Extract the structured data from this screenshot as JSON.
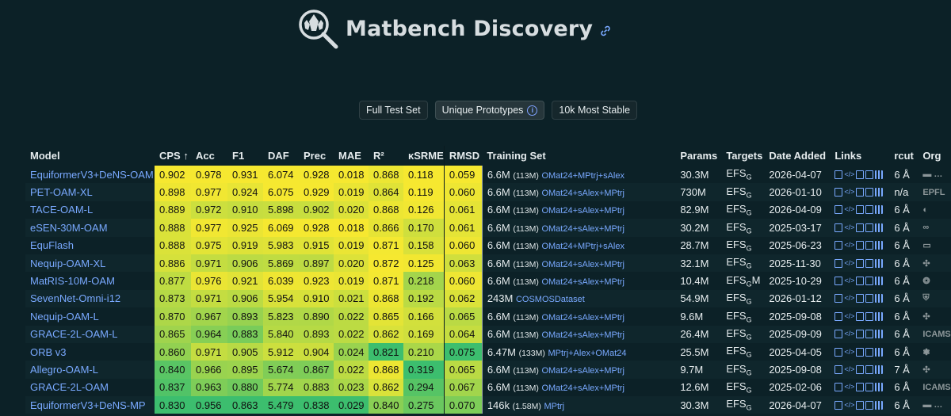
{
  "header": {
    "title": "Matbench Discovery"
  },
  "buttons": {
    "full": "Full Test Set",
    "unique": "Unique Prototypes",
    "stable": "10k Most Stable"
  },
  "columns": [
    "Model",
    "CPS ↑",
    "Acc",
    "F1",
    "DAF",
    "Prec",
    "MAE",
    "R²",
    "κSRME",
    "RMSD",
    "Training Set",
    "Params",
    "Targets",
    "Date Added",
    "Links",
    "rcut",
    "Org"
  ],
  "rows": [
    {
      "model": "EquiformerV3+DeNS-OAM",
      "cps": "0.902",
      "acc": "0.978",
      "f1": "0.931",
      "daf": "6.074",
      "prec": "0.928",
      "mae": "0.018",
      "r2": "0.868",
      "ksrme": "0.118",
      "rmsd": "0.059",
      "train_n": "6.6M",
      "train_s": "(113M)",
      "train_ds": "OMat24+MPtrj+sAlex",
      "params": "30.3M",
      "targets": "EFS",
      "targets_sub": "G",
      "targets_suf": "",
      "date": "2026-04-07",
      "rcut": "6 Å",
      "org": "▬ …"
    },
    {
      "model": "PET-OAM-XL",
      "cps": "0.898",
      "acc": "0.977",
      "f1": "0.924",
      "daf": "6.075",
      "prec": "0.929",
      "mae": "0.019",
      "r2": "0.864",
      "ksrme": "0.119",
      "rmsd": "0.060",
      "train_n": "6.6M",
      "train_s": "(113M)",
      "train_ds": "OMat24+sAlex+MPtrj",
      "params": "730M",
      "targets": "EFS",
      "targets_sub": "G",
      "targets_suf": "",
      "date": "2026-01-10",
      "rcut": "n/a",
      "org": "EPFL"
    },
    {
      "model": "TACE-OAM-L",
      "cps": "0.889",
      "acc": "0.972",
      "f1": "0.910",
      "daf": "5.898",
      "prec": "0.902",
      "mae": "0.020",
      "r2": "0.868",
      "ksrme": "0.126",
      "rmsd": "0.061",
      "train_n": "6.6M",
      "train_s": "(113M)",
      "train_ds": "OMat24+sAlex+MPtrj",
      "params": "82.9M",
      "targets": "EFS",
      "targets_sub": "G",
      "targets_suf": "",
      "date": "2026-04-09",
      "rcut": "6 Å",
      "org": "◐"
    },
    {
      "model": "eSEN-30M-OAM",
      "cps": "0.888",
      "acc": "0.977",
      "f1": "0.925",
      "daf": "6.069",
      "prec": "0.928",
      "mae": "0.018",
      "r2": "0.866",
      "ksrme": "0.170",
      "rmsd": "0.061",
      "train_n": "6.6M",
      "train_s": "(113M)",
      "train_ds": "OMat24+sAlex+MPtrj",
      "params": "30.2M",
      "targets": "EFS",
      "targets_sub": "G",
      "targets_suf": "",
      "date": "2025-03-17",
      "rcut": "6 Å",
      "org": "∞"
    },
    {
      "model": "EquFlash",
      "cps": "0.888",
      "acc": "0.975",
      "f1": "0.919",
      "daf": "5.983",
      "prec": "0.915",
      "mae": "0.019",
      "r2": "0.871",
      "ksrme": "0.158",
      "rmsd": "0.060",
      "train_n": "6.6M",
      "train_s": "(113M)",
      "train_ds": "OMat24+MPtrj+sAlex",
      "params": "28.7M",
      "targets": "EFS",
      "targets_sub": "G",
      "targets_suf": "",
      "date": "2025-06-23",
      "rcut": "6 Å",
      "org": "▭"
    },
    {
      "model": "Nequip-OAM-XL",
      "cps": "0.886",
      "acc": "0.971",
      "f1": "0.906",
      "daf": "5.869",
      "prec": "0.897",
      "mae": "0.020",
      "r2": "0.872",
      "ksrme": "0.125",
      "rmsd": "0.063",
      "train_n": "6.6M",
      "train_s": "(113M)",
      "train_ds": "OMat24+sAlex+MPtrj",
      "params": "32.1M",
      "targets": "EFS",
      "targets_sub": "G",
      "targets_suf": "",
      "date": "2025-11-30",
      "rcut": "6 Å",
      "org": "✣"
    },
    {
      "model": "MatRIS-10M-OAM",
      "cps": "0.877",
      "acc": "0.976",
      "f1": "0.921",
      "daf": "6.039",
      "prec": "0.923",
      "mae": "0.019",
      "r2": "0.871",
      "ksrme": "0.218",
      "rmsd": "0.060",
      "train_n": "6.6M",
      "train_s": "(113M)",
      "train_ds": "OMat24+sAlex+MPtrj",
      "params": "10.4M",
      "targets": "EFS",
      "targets_sub": "G",
      "targets_suf": "M",
      "date": "2025-10-29",
      "rcut": "6 Å",
      "org": "❂"
    },
    {
      "model": "SevenNet-Omni-i12",
      "cps": "0.873",
      "acc": "0.971",
      "f1": "0.906",
      "daf": "5.954",
      "prec": "0.910",
      "mae": "0.021",
      "r2": "0.868",
      "ksrme": "0.192",
      "rmsd": "0.062",
      "train_n": "243M",
      "train_s": "",
      "train_ds": "COSMOSDataset",
      "params": "54.9M",
      "targets": "EFS",
      "targets_sub": "G",
      "targets_suf": "",
      "date": "2026-01-12",
      "rcut": "6 Å",
      "org": "⛨"
    },
    {
      "model": "Nequip-OAM-L",
      "cps": "0.870",
      "acc": "0.967",
      "f1": "0.893",
      "daf": "5.823",
      "prec": "0.890",
      "mae": "0.022",
      "r2": "0.865",
      "ksrme": "0.166",
      "rmsd": "0.065",
      "train_n": "6.6M",
      "train_s": "(113M)",
      "train_ds": "OMat24+sAlex+MPtrj",
      "params": "9.6M",
      "targets": "EFS",
      "targets_sub": "G",
      "targets_suf": "",
      "date": "2025-09-08",
      "rcut": "6 Å",
      "org": "✣"
    },
    {
      "model": "GRACE-2L-OAM-L",
      "cps": "0.865",
      "acc": "0.964",
      "f1": "0.883",
      "daf": "5.840",
      "prec": "0.893",
      "mae": "0.022",
      "r2": "0.862",
      "ksrme": "0.169",
      "rmsd": "0.064",
      "train_n": "6.6M",
      "train_s": "(113M)",
      "train_ds": "OMat24+sAlex+MPtrj",
      "params": "26.4M",
      "targets": "EFS",
      "targets_sub": "G",
      "targets_suf": "",
      "date": "2025-09-09",
      "rcut": "6 Å",
      "org": "ICAMS"
    },
    {
      "model": "ORB v3",
      "cps": "0.860",
      "acc": "0.971",
      "f1": "0.905",
      "daf": "5.912",
      "prec": "0.904",
      "mae": "0.024",
      "r2": "0.821",
      "ksrme": "0.210",
      "rmsd": "0.075",
      "train_n": "6.47M",
      "train_s": "(133M)",
      "train_ds": "MPtrj+Alex+OMat24",
      "params": "25.5M",
      "targets": "EFS",
      "targets_sub": "G",
      "targets_suf": "",
      "date": "2025-04-05",
      "rcut": "6 Å",
      "org": "❃"
    },
    {
      "model": "Allegro-OAM-L",
      "cps": "0.840",
      "acc": "0.966",
      "f1": "0.895",
      "daf": "5.674",
      "prec": "0.867",
      "mae": "0.022",
      "r2": "0.868",
      "ksrme": "0.319",
      "rmsd": "0.065",
      "train_n": "6.6M",
      "train_s": "(113M)",
      "train_ds": "OMat24+sAlex+MPtrj",
      "params": "9.7M",
      "targets": "EFS",
      "targets_sub": "G",
      "targets_suf": "",
      "date": "2025-09-08",
      "rcut": "7 Å",
      "org": "✣"
    },
    {
      "model": "GRACE-2L-OAM",
      "cps": "0.837",
      "acc": "0.963",
      "f1": "0.880",
      "daf": "5.774",
      "prec": "0.883",
      "mae": "0.023",
      "r2": "0.862",
      "ksrme": "0.294",
      "rmsd": "0.067",
      "train_n": "6.6M",
      "train_s": "(113M)",
      "train_ds": "OMat24+sAlex+MPtrj",
      "params": "12.6M",
      "targets": "EFS",
      "targets_sub": "G",
      "targets_suf": "",
      "date": "2025-02-06",
      "rcut": "6 Å",
      "org": "ICAMS"
    },
    {
      "model": "EquiformerV3+DeNS-MP",
      "cps": "0.830",
      "acc": "0.956",
      "f1": "0.863",
      "daf": "5.479",
      "prec": "0.838",
      "mae": "0.029",
      "r2": "0.840",
      "ksrme": "0.275",
      "rmsd": "0.070",
      "train_n": "146k",
      "train_s": "(1.58M)",
      "train_ds": "MPtrj",
      "params": "30.3M",
      "targets": "EFS",
      "targets_sub": "G",
      "targets_suf": "",
      "date": "2026-04-07",
      "rcut": "6 Å",
      "org": "▬ …"
    }
  ],
  "colors": {
    "background": "#0c2127",
    "link": "#79a9ff",
    "yellow": "#f6e830",
    "green": "#3fbf6e"
  }
}
